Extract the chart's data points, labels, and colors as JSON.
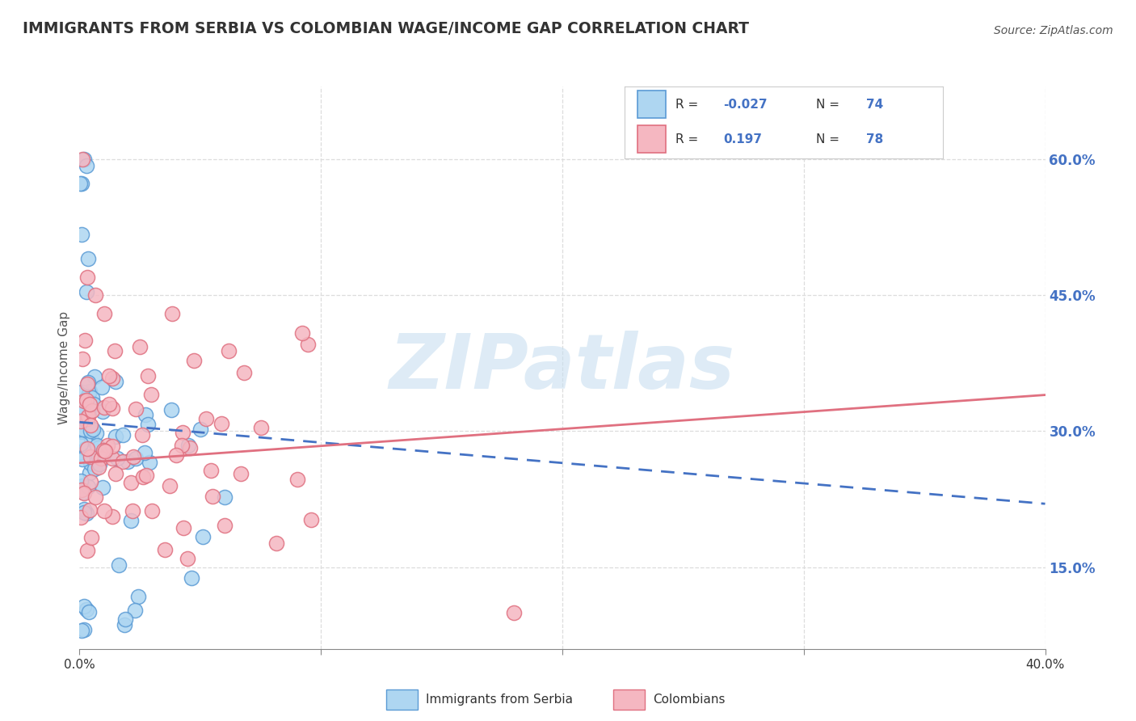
{
  "title": "IMMIGRANTS FROM SERBIA VS COLOMBIAN WAGE/INCOME GAP CORRELATION CHART",
  "source": "Source: ZipAtlas.com",
  "ylabel": "Wage/Income Gap",
  "xlim": [
    0.0,
    0.4
  ],
  "ylim": [
    0.06,
    0.68
  ],
  "xticks": [
    0.0,
    0.1,
    0.2,
    0.3,
    0.4
  ],
  "xticklabels": [
    "0.0%",
    "",
    "",
    "",
    "40.0%"
  ],
  "yticks_right": [
    0.15,
    0.3,
    0.45,
    0.6
  ],
  "yticklabels_right": [
    "15.0%",
    "30.0%",
    "45.0%",
    "60.0%"
  ],
  "serbia_R": -0.027,
  "serbia_N": 74,
  "colombia_R": 0.197,
  "colombia_N": 78,
  "serbia_color": "#aed6f1",
  "serbia_edge": "#5b9bd5",
  "colombia_color": "#f5b7c1",
  "colombia_edge": "#e07080",
  "serbia_line_color": "#4472c4",
  "colombia_line_color": "#e07080",
  "legend_label_serbia": "Immigrants from Serbia",
  "legend_label_colombia": "Colombians",
  "watermark": "ZIPatlas",
  "watermark_color": "#c8dff0",
  "background_color": "#ffffff",
  "grid_color": "#dddddd",
  "title_color": "#333333",
  "source_color": "#555555",
  "right_tick_color": "#4472c4"
}
